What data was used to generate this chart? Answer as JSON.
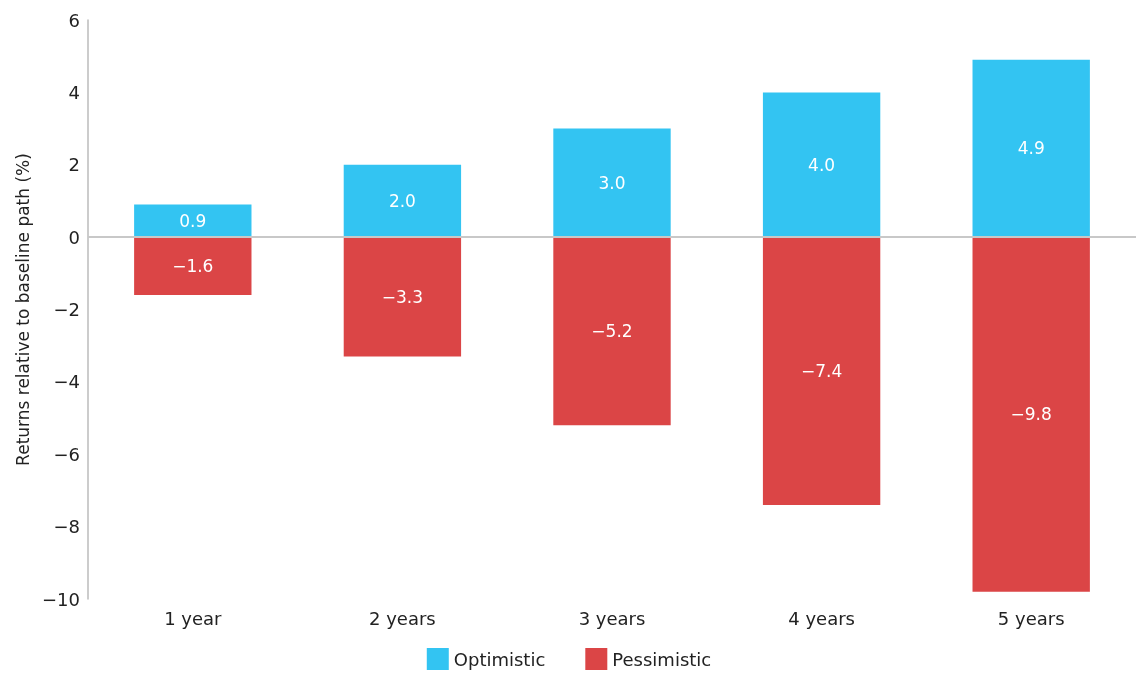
{
  "chart_data": {
    "type": "bar",
    "ylabel": "Returns relative to baseline path (%)",
    "categories": [
      "1 year",
      "2 years",
      "3 years",
      "4 years",
      "5 years"
    ],
    "series": [
      {
        "name": "Optimistic",
        "color": "#33c4f2",
        "values": [
          0.9,
          2.0,
          3.0,
          4.0,
          4.9
        ],
        "value_labels": [
          "0.9",
          "2.0",
          "3.0",
          "4.0",
          "4.9"
        ]
      },
      {
        "name": "Pessimistic",
        "color": "#db4546",
        "values": [
          -1.6,
          -3.3,
          -5.2,
          -7.4,
          -9.8
        ],
        "value_labels": [
          "−1.6",
          "−3.3",
          "−5.2",
          "−7.4",
          "−9.8"
        ]
      }
    ],
    "stacked": true,
    "ylim": [
      -10,
      6
    ],
    "yticks": [
      {
        "value": -10,
        "label": "−10"
      },
      {
        "value": -8,
        "label": "−8"
      },
      {
        "value": -6,
        "label": "−6"
      },
      {
        "value": -4,
        "label": "−4"
      },
      {
        "value": -2,
        "label": "−2"
      },
      0,
      2,
      4,
      6
    ],
    "ref_lines": [
      {
        "axis": "y",
        "value": 0,
        "color": "#c8c8c8"
      }
    ],
    "grid": false,
    "legend": "bottom"
  }
}
